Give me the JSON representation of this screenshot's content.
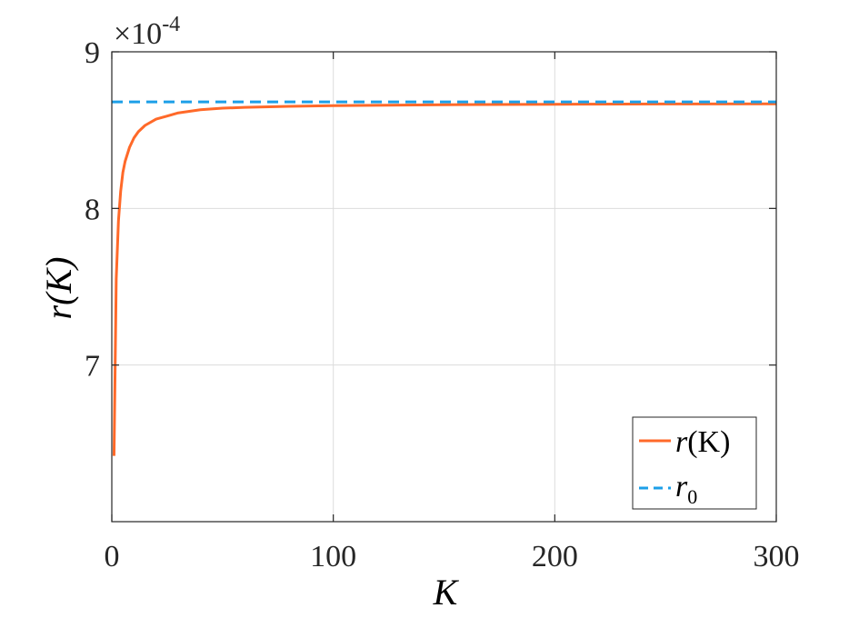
{
  "chart_data": {
    "type": "line",
    "xlabel": "K",
    "ylabel": "r(K)",
    "xlim": [
      0,
      300
    ],
    "ylim": [
      6.0,
      9.0
    ],
    "y_multiplier": "×10",
    "y_multiplier_exponent": "-4",
    "x_ticks": [
      "0",
      "100",
      "200",
      "300"
    ],
    "y_ticks": [
      "7",
      "8",
      "9"
    ],
    "grid": true,
    "legend_position": "bottom-right",
    "series": [
      {
        "name": "r(K)",
        "style": "solid",
        "color": "#ff6929",
        "points": [
          [
            1,
            6.42
          ],
          [
            2,
            7.55
          ],
          [
            3,
            7.92
          ],
          [
            4,
            8.11
          ],
          [
            5,
            8.23
          ],
          [
            6,
            8.3
          ],
          [
            8,
            8.39
          ],
          [
            10,
            8.45
          ],
          [
            12,
            8.49
          ],
          [
            15,
            8.53
          ],
          [
            20,
            8.57
          ],
          [
            25,
            8.59
          ],
          [
            30,
            8.61
          ],
          [
            40,
            8.63
          ],
          [
            50,
            8.64
          ],
          [
            60,
            8.645
          ],
          [
            80,
            8.652
          ],
          [
            100,
            8.656
          ],
          [
            150,
            8.662
          ],
          [
            200,
            8.665
          ],
          [
            250,
            8.667
          ],
          [
            300,
            8.668
          ]
        ]
      },
      {
        "name": "r0",
        "style": "dashed",
        "color": "#1c9fe8",
        "points": [
          [
            0,
            8.68
          ],
          [
            300,
            8.68
          ]
        ]
      }
    ],
    "legend": [
      {
        "label_main": "r",
        "label_rest": "(K)"
      },
      {
        "label_main": "r",
        "label_sub": "0"
      }
    ]
  }
}
